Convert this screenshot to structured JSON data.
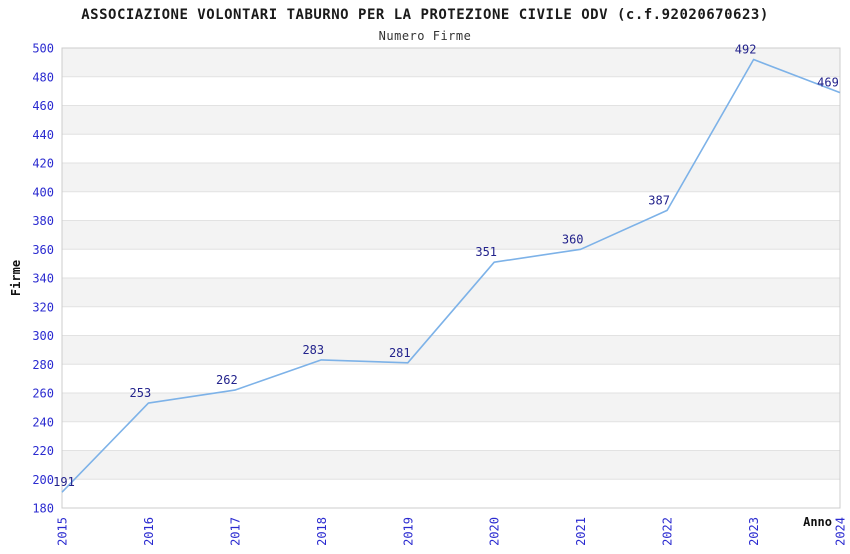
{
  "chart_data": {
    "type": "line",
    "title": "ASSOCIAZIONE VOLONTARI TABURNO PER LA PROTEZIONE CIVILE ODV (c.f.92020670623)",
    "subtitle": "Numero Firme",
    "xlabel": "Anno",
    "ylabel": "Firme",
    "categories": [
      "2015",
      "2016",
      "2017",
      "2018",
      "2019",
      "2020",
      "2021",
      "2022",
      "2023",
      "2024"
    ],
    "values": [
      191,
      253,
      262,
      283,
      281,
      351,
      360,
      387,
      492,
      469
    ],
    "ylim": [
      180,
      500
    ],
    "ytick_step": 20,
    "grid": true,
    "alternating_bands": true,
    "legend_position": "none",
    "colors": {
      "line": "#7db2e8",
      "tick_label": "#2b2bd0",
      "data_label": "#23238c",
      "band": "#f3f3f3",
      "gridline": "#e2e2e2",
      "plot_border": "#cccccc",
      "background": "#ffffff"
    }
  }
}
